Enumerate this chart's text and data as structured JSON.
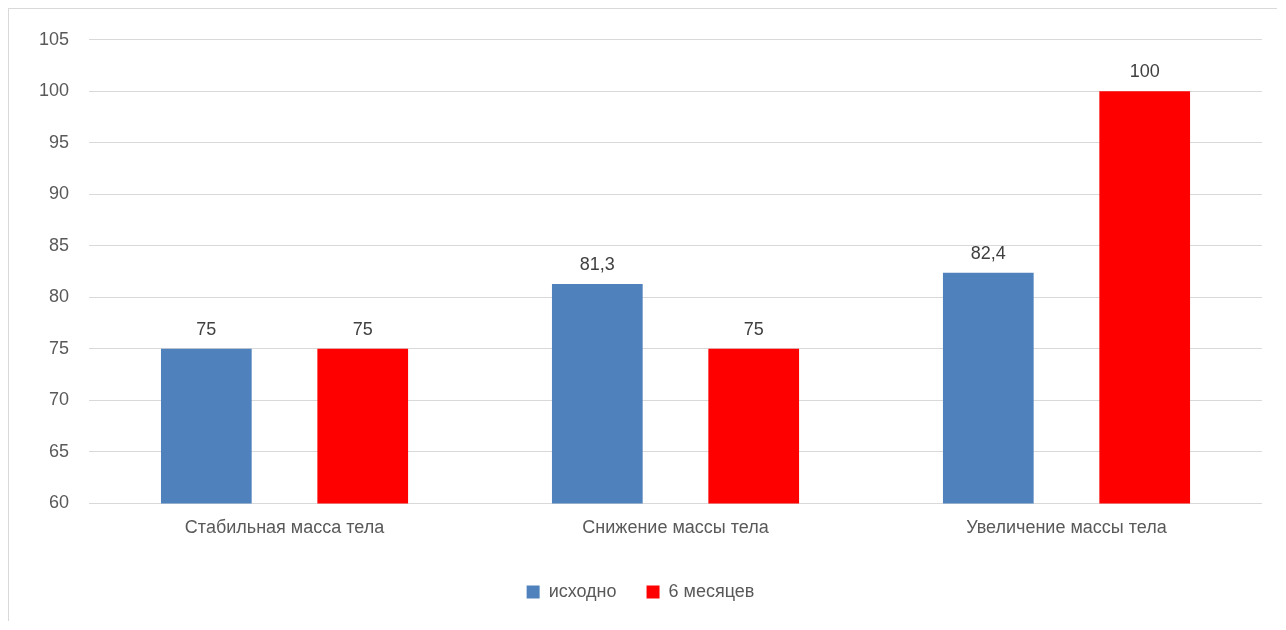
{
  "chart_data": {
    "type": "bar",
    "categories": [
      "Стабильная масса тела",
      "Снижение массы тела",
      "Увеличение массы тела"
    ],
    "series": [
      {
        "name": "исходно",
        "color": "#4f81bd",
        "values": [
          75,
          81.3,
          82.4
        ],
        "value_labels": [
          "75",
          "81,3",
          "82,4"
        ]
      },
      {
        "name": "6 месяцев",
        "color": "#ff0000",
        "values": [
          75,
          75,
          100
        ],
        "value_labels": [
          "75",
          "75",
          "100"
        ]
      }
    ],
    "ylim": [
      60,
      105
    ],
    "yticks": [
      60,
      65,
      70,
      75,
      80,
      85,
      90,
      95,
      100,
      105
    ],
    "grid": "y",
    "legend": "bottom"
  }
}
